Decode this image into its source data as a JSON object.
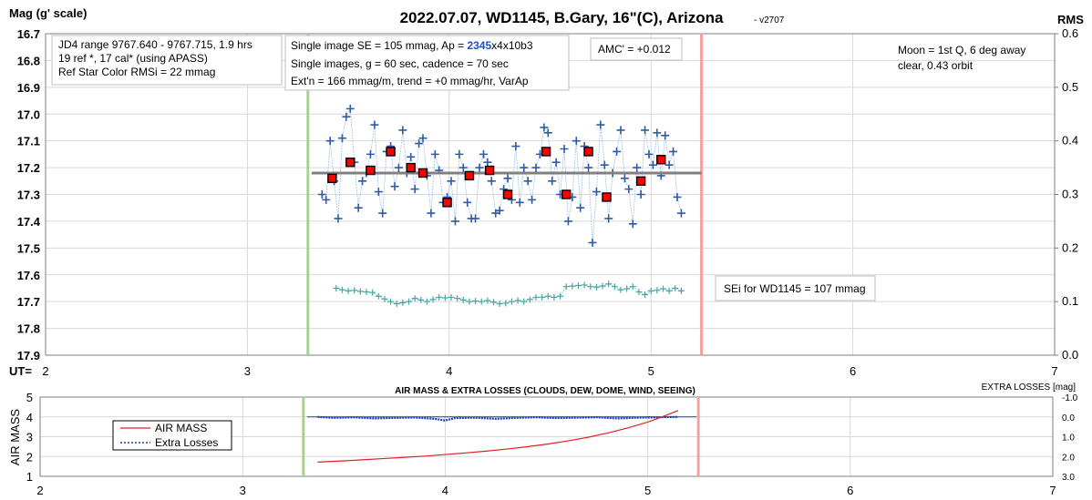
{
  "chart_data": [
    {
      "type": "scatter",
      "title": "2022.07.07, WD1145, B.Gary, 16\"(C), Arizona",
      "version": "- v2707",
      "ylabel": "Mag (g' scale)",
      "y2label": "RMS",
      "xlabel": "UT=",
      "xlim": [
        2,
        7
      ],
      "ylim": [
        16.7,
        17.9
      ],
      "y_inverted": true,
      "y2lim": [
        0.0,
        0.6
      ],
      "xticks": [
        "2",
        "3",
        "4",
        "5",
        "6",
        "7"
      ],
      "yticks": [
        "16.7",
        "16.8",
        "16.9",
        "17.0",
        "17.1",
        "17.2",
        "17.3",
        "17.4",
        "17.5",
        "17.6",
        "17.7",
        "17.8",
        "17.9"
      ],
      "y2ticks": [
        "0.6",
        "0.5",
        "0.4",
        "0.3",
        "0.2",
        "0.1",
        "0.0"
      ],
      "grid": true,
      "vertical_markers": [
        {
          "x": 3.3,
          "color": "#a9d18e"
        },
        {
          "x": 5.25,
          "color": "#f4a0a0"
        }
      ],
      "mean_line": {
        "y": 17.22,
        "x_start": 3.3,
        "x_end": 5.25,
        "color": "#808080"
      },
      "series": [
        {
          "x": [
            3.37,
            3.39,
            3.41,
            3.43,
            3.45,
            3.47,
            3.49,
            3.51,
            3.53,
            3.55,
            3.57,
            3.59,
            3.61,
            3.63,
            3.65,
            3.67,
            3.69,
            3.71,
            3.73,
            3.75,
            3.77,
            3.79,
            3.81,
            3.83,
            3.85,
            3.87,
            3.89,
            3.91,
            3.93,
            3.95,
            3.97,
            3.99,
            4.01,
            4.03,
            4.05,
            4.07,
            4.09,
            4.11,
            4.13,
            4.15,
            4.17,
            4.19,
            4.21,
            4.23,
            4.25,
            4.27,
            4.29,
            4.31,
            4.33,
            4.35,
            4.37,
            4.39,
            4.41,
            4.43,
            4.45,
            4.47,
            4.49,
            4.51,
            4.53,
            4.55,
            4.57,
            4.59,
            4.61,
            4.63,
            4.65,
            4.67,
            4.69,
            4.71,
            4.73,
            4.75,
            4.77,
            4.79,
            4.81,
            4.83,
            4.85,
            4.87,
            4.89,
            4.91,
            4.93,
            4.95,
            4.97,
            4.99,
            5.01,
            5.03,
            5.05,
            5.07,
            5.09,
            5.11,
            5.13,
            5.15
          ],
          "y": [
            17.3,
            17.32,
            17.1,
            17.25,
            17.39,
            17.09,
            17.01,
            16.98,
            17.18,
            17.35,
            17.25,
            17.22,
            17.15,
            17.04,
            17.29,
            17.37,
            17.14,
            17.12,
            17.27,
            17.2,
            17.06,
            17.22,
            17.16,
            17.28,
            17.11,
            17.09,
            17.23,
            17.37,
            17.15,
            17.21,
            17.33,
            17.31,
            17.25,
            17.4,
            17.15,
            17.2,
            17.33,
            17.39,
            17.39,
            17.2,
            17.15,
            17.18,
            17.25,
            17.37,
            17.36,
            17.28,
            17.24,
            17.32,
            17.12,
            17.33,
            17.2,
            17.25,
            17.32,
            17.2,
            17.15,
            17.05,
            17.07,
            17.25,
            17.18,
            17.3,
            17.13,
            17.4,
            17.31,
            17.1,
            17.35,
            17.12,
            17.2,
            17.48,
            17.29,
            17.04,
            17.19,
            17.39,
            17.22,
            17.14,
            17.06,
            17.24,
            17.28,
            17.41,
            17.2,
            17.3,
            17.06,
            17.15,
            17.19,
            17.07,
            17.23,
            17.08,
            17.19,
            17.14,
            17.31,
            17.37
          ],
          "color": "#2e5aa8",
          "marker": "plus"
        },
        {
          "x": [
            3.42,
            3.51,
            3.61,
            3.71,
            3.81,
            3.87,
            3.99,
            4.1,
            4.2,
            4.29,
            4.48,
            4.58,
            4.69,
            4.78,
            4.95,
            5.05
          ],
          "y": [
            17.24,
            17.18,
            17.21,
            17.14,
            17.2,
            17.22,
            17.33,
            17.23,
            17.21,
            17.3,
            17.14,
            17.3,
            17.14,
            17.31,
            17.25,
            17.17
          ],
          "color": "#ff0000",
          "marker": "square"
        },
        {
          "axis": "y2",
          "x": [
            3.44,
            3.47,
            3.5,
            3.53,
            3.56,
            3.59,
            3.62,
            3.65,
            3.68,
            3.71,
            3.74,
            3.77,
            3.8,
            3.83,
            3.86,
            3.89,
            3.92,
            3.95,
            3.98,
            4.01,
            4.04,
            4.07,
            4.1,
            4.13,
            4.16,
            4.19,
            4.22,
            4.25,
            4.28,
            4.31,
            4.34,
            4.37,
            4.4,
            4.43,
            4.46,
            4.49,
            4.52,
            4.55,
            4.58,
            4.61,
            4.64,
            4.67,
            4.7,
            4.73,
            4.76,
            4.79,
            4.82,
            4.85,
            4.88,
            4.91,
            4.94,
            4.97,
            5.0,
            5.03,
            5.06,
            5.09,
            5.12,
            5.15
          ],
          "y": [
            0.125,
            0.122,
            0.12,
            0.121,
            0.119,
            0.118,
            0.117,
            0.11,
            0.105,
            0.1,
            0.096,
            0.098,
            0.1,
            0.106,
            0.103,
            0.1,
            0.104,
            0.108,
            0.107,
            0.108,
            0.106,
            0.103,
            0.1,
            0.101,
            0.1,
            0.102,
            0.099,
            0.096,
            0.097,
            0.1,
            0.102,
            0.1,
            0.104,
            0.108,
            0.108,
            0.11,
            0.108,
            0.11,
            0.128,
            0.129,
            0.13,
            0.131,
            0.128,
            0.127,
            0.129,
            0.133,
            0.128,
            0.122,
            0.124,
            0.128,
            0.118,
            0.113,
            0.12,
            0.121,
            0.124,
            0.12,
            0.125,
            0.12
          ],
          "color": "#4aa6a6",
          "marker": "plus"
        }
      ],
      "annotations": [
        "JD4 range 9767.640 - 9767.715, 1.9 hrs",
        "19 ref *, 17 cal* (using APASS)",
        "Ref Star Color RMSi = 22 mmag",
        "Single image SE = 105 mmag, Ap = 2345x4x10b3",
        "Single images, g = 60 sec, cadence = 70 sec",
        "Ext'n = 166 mmag/m, trend = +0 mmag/hr, VarAp",
        "AMC' = +0.012",
        "Moon = 1st Q, 6 deg away",
        "clear,  0.43 orbit",
        "SEi for WD1145 = 107 mmag"
      ],
      "ap_highlight": "2345",
      "ap_highlight_color": "#1f4fcf"
    },
    {
      "type": "line",
      "title": "AIR MASS & EXTRA LOSSES (CLOUDS, DEW, DOME, WIND, SEEING)",
      "ylabel": "AIR MASS",
      "y2label": "EXTRA LOSSES [mag]",
      "xlim": [
        2,
        7
      ],
      "ylim": [
        1,
        5
      ],
      "y2lim": [
        -1.0,
        3.0
      ],
      "y2_inverted": true,
      "xticks": [
        "2",
        "3",
        "4",
        "5",
        "6",
        "7"
      ],
      "yticks": [
        "5",
        "4",
        "3",
        "2",
        "1"
      ],
      "y2ticks": [
        "-1.0",
        "0.0",
        "1.0",
        "2.0",
        "3.0"
      ],
      "grid": true,
      "legend_position": "left",
      "vertical_markers": [
        {
          "x": 3.3,
          "color": "#a9d18e"
        },
        {
          "x": 5.25,
          "color": "#f4a0a0"
        }
      ],
      "series": [
        {
          "name": "AIR MASS",
          "color": "#e02020",
          "x": [
            3.37,
            3.5,
            3.6,
            3.7,
            3.8,
            3.9,
            4.0,
            4.1,
            4.2,
            4.3,
            4.4,
            4.5,
            4.6,
            4.7,
            4.8,
            4.9,
            5.0,
            5.05,
            5.1,
            5.15
          ],
          "y": [
            1.72,
            1.78,
            1.84,
            1.9,
            1.96,
            2.02,
            2.1,
            2.18,
            2.27,
            2.37,
            2.49,
            2.62,
            2.78,
            2.96,
            3.18,
            3.44,
            3.74,
            3.92,
            4.12,
            4.32
          ]
        },
        {
          "name": "Extra Losses",
          "color": "#1f3fa8",
          "dashed": true,
          "axis": "y2",
          "x": [
            3.37,
            3.45,
            3.55,
            3.65,
            3.75,
            3.85,
            3.95,
            4.0,
            4.05,
            4.15,
            4.25,
            4.35,
            4.45,
            4.55,
            4.65,
            4.75,
            4.85,
            4.95,
            5.05,
            5.15
          ],
          "y": [
            0.0,
            0.05,
            0.02,
            0.08,
            0.05,
            0.03,
            0.1,
            0.18,
            0.06,
            0.04,
            0.1,
            0.05,
            0.02,
            0.06,
            0.04,
            0.02,
            0.08,
            0.04,
            0.02,
            0.0
          ]
        }
      ],
      "hline": {
        "axis": "y2",
        "y": 0.0,
        "x_start": 3.3,
        "x_end": 5.25,
        "color": "#1f3fa8"
      }
    }
  ]
}
